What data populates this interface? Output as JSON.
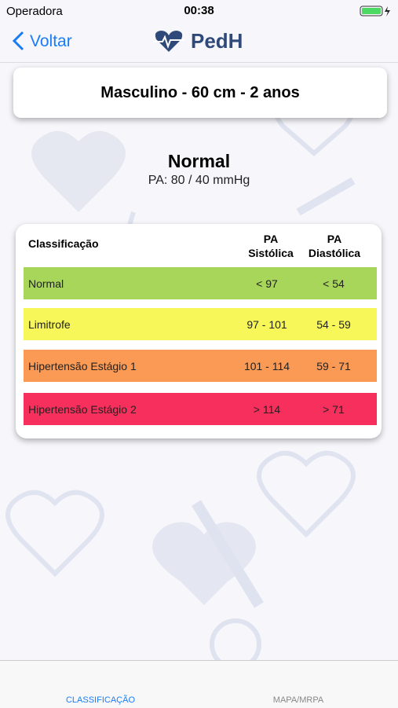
{
  "status_bar": {
    "carrier": "Operadora",
    "time": "00:38"
  },
  "nav": {
    "back": "Voltar",
    "title": "PedH"
  },
  "patient": "Masculino - 60 cm - 2 anos",
  "result": {
    "classification": "Normal",
    "pressure": "PA: 80 / 40 mmHg"
  },
  "table": {
    "header": {
      "classification": "Classificação",
      "systolic": [
        "PA",
        "Sistólica"
      ],
      "diastolic": [
        "PA",
        "Diastólica"
      ]
    },
    "rows": [
      [
        "Normal",
        "< 97",
        "< 54"
      ],
      [
        "Limitrofe",
        "97 - 101",
        "54 - 59"
      ],
      [
        "Hipertensão Estágio 1",
        "101 - 114",
        "59 - 71"
      ],
      [
        "Hipertensão Estágio 2",
        "> 114",
        "> 71"
      ]
    ]
  },
  "tabs": [
    "CLASSIFICAÇÃO",
    "MAPA/MRPA"
  ]
}
